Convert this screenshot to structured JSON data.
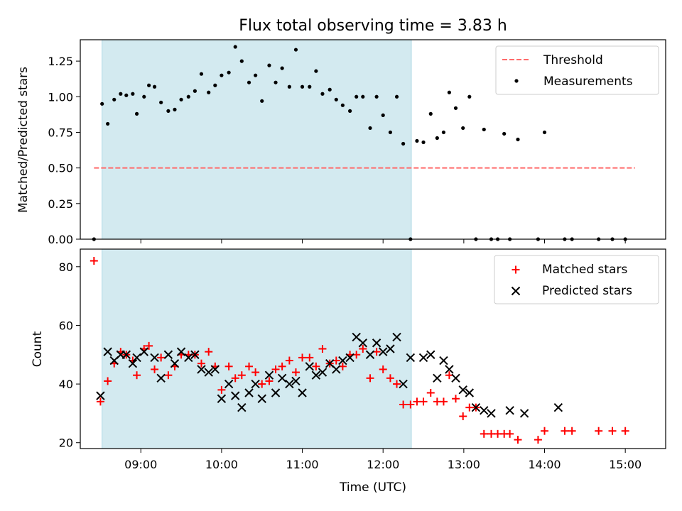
{
  "title": "Flux total observing time = 3.83 h",
  "colors": {
    "threshold": "#ff6b6b",
    "measurements": "#000000",
    "matched": "#ff0000",
    "predicted": "#000000",
    "shade": "#d3eaf0"
  },
  "chart_data": [
    {
      "type": "scatter",
      "panel": "top",
      "title": "Flux total observing time = 3.83 h",
      "xlabel": "",
      "ylabel": "Matched/Predicted stars",
      "xlim": [
        8.25,
        15.5
      ],
      "ylim": [
        0.0,
        1.4
      ],
      "yticks": [
        0.0,
        0.25,
        0.5,
        0.75,
        1.0,
        1.25
      ],
      "ytick_labels": [
        "0.00",
        "0.25",
        "0.50",
        "0.75",
        "1.00",
        "1.25"
      ],
      "shaded_span": [
        8.52,
        12.35
      ],
      "threshold": {
        "name": "Threshold",
        "y": 0.5,
        "x": [
          8.42,
          15.12
        ]
      },
      "legend": {
        "placement": "top-right",
        "entries": [
          "Threshold",
          "Measurements"
        ]
      },
      "series": [
        {
          "name": "Measurements",
          "points": [
            [
              8.42,
              0.0
            ],
            [
              8.52,
              0.95
            ],
            [
              8.59,
              0.81
            ],
            [
              8.67,
              0.98
            ],
            [
              8.75,
              1.02
            ],
            [
              8.82,
              1.01
            ],
            [
              8.9,
              1.02
            ],
            [
              8.95,
              0.88
            ],
            [
              9.04,
              1.0
            ],
            [
              9.1,
              1.08
            ],
            [
              9.17,
              1.07
            ],
            [
              9.25,
              0.96
            ],
            [
              9.34,
              0.9
            ],
            [
              9.42,
              0.91
            ],
            [
              9.5,
              0.98
            ],
            [
              9.59,
              1.0
            ],
            [
              9.67,
              1.04
            ],
            [
              9.75,
              1.16
            ],
            [
              9.84,
              1.03
            ],
            [
              9.92,
              1.08
            ],
            [
              10.0,
              1.15
            ],
            [
              10.09,
              1.17
            ],
            [
              10.17,
              1.35
            ],
            [
              10.25,
              1.25
            ],
            [
              10.34,
              1.1
            ],
            [
              10.42,
              1.15
            ],
            [
              10.5,
              0.97
            ],
            [
              10.59,
              1.22
            ],
            [
              10.67,
              1.1
            ],
            [
              10.75,
              1.2
            ],
            [
              10.84,
              1.07
            ],
            [
              10.92,
              1.33
            ],
            [
              11.0,
              1.07
            ],
            [
              11.09,
              1.07
            ],
            [
              11.17,
              1.18
            ],
            [
              11.25,
              1.02
            ],
            [
              11.34,
              1.05
            ],
            [
              11.42,
              0.98
            ],
            [
              11.5,
              0.94
            ],
            [
              11.59,
              0.9
            ],
            [
              11.67,
              1.0
            ],
            [
              11.75,
              1.0
            ],
            [
              11.84,
              0.78
            ],
            [
              11.92,
              1.0
            ],
            [
              12.0,
              0.87
            ],
            [
              12.09,
              0.75
            ],
            [
              12.17,
              1.0
            ],
            [
              12.25,
              0.67
            ],
            [
              12.34,
              0.0
            ],
            [
              12.42,
              0.69
            ],
            [
              12.5,
              0.68
            ],
            [
              12.59,
              0.88
            ],
            [
              12.67,
              0.71
            ],
            [
              12.75,
              0.75
            ],
            [
              12.82,
              1.03
            ],
            [
              12.9,
              0.92
            ],
            [
              12.99,
              0.78
            ],
            [
              13.07,
              1.0
            ],
            [
              13.15,
              0.0
            ],
            [
              13.25,
              0.77
            ],
            [
              13.34,
              0.0
            ],
            [
              13.42,
              0.0
            ],
            [
              13.5,
              0.74
            ],
            [
              13.57,
              0.0
            ],
            [
              13.67,
              0.7
            ],
            [
              13.92,
              0.0
            ],
            [
              14.0,
              0.75
            ],
            [
              14.25,
              0.0
            ],
            [
              14.34,
              0.0
            ],
            [
              14.67,
              0.0
            ],
            [
              14.84,
              0.0
            ],
            [
              15.0,
              0.0
            ]
          ]
        }
      ]
    },
    {
      "type": "scatter",
      "panel": "bottom",
      "xlabel": "Time (UTC)",
      "ylabel": "Count",
      "xlim": [
        8.25,
        15.5
      ],
      "ylim": [
        18,
        86
      ],
      "yticks": [
        20,
        40,
        60,
        80
      ],
      "ytick_labels": [
        "20",
        "40",
        "60",
        "80"
      ],
      "xticks": [
        9,
        10,
        11,
        12,
        13,
        14,
        15
      ],
      "xtick_labels": [
        "09:00",
        "10:00",
        "11:00",
        "12:00",
        "13:00",
        "14:00",
        "15:00"
      ],
      "shaded_span": [
        8.52,
        12.35
      ],
      "legend": {
        "placement": "top-right",
        "entries": [
          "Matched stars",
          "Predicted stars"
        ]
      },
      "series": [
        {
          "name": "Matched stars",
          "marker": "plus",
          "points": [
            [
              8.42,
              82
            ],
            [
              8.5,
              34
            ],
            [
              8.59,
              41
            ],
            [
              8.67,
              47
            ],
            [
              8.75,
              51
            ],
            [
              8.82,
              50
            ],
            [
              8.9,
              48
            ],
            [
              8.95,
              43
            ],
            [
              9.04,
              52
            ],
            [
              9.1,
              53
            ],
            [
              9.17,
              45
            ],
            [
              9.25,
              49
            ],
            [
              9.34,
              43
            ],
            [
              9.42,
              46
            ],
            [
              9.5,
              50
            ],
            [
              9.59,
              50
            ],
            [
              9.67,
              50
            ],
            [
              9.75,
              47
            ],
            [
              9.84,
              51
            ],
            [
              9.92,
              46
            ],
            [
              10.0,
              38
            ],
            [
              10.09,
              46
            ],
            [
              10.17,
              42
            ],
            [
              10.25,
              43
            ],
            [
              10.34,
              46
            ],
            [
              10.42,
              44
            ],
            [
              10.5,
              40
            ],
            [
              10.59,
              41
            ],
            [
              10.67,
              45
            ],
            [
              10.75,
              46
            ],
            [
              10.84,
              48
            ],
            [
              10.92,
              44
            ],
            [
              11.0,
              49
            ],
            [
              11.09,
              49
            ],
            [
              11.17,
              46
            ],
            [
              11.25,
              52
            ],
            [
              11.34,
              47
            ],
            [
              11.42,
              48
            ],
            [
              11.5,
              46
            ],
            [
              11.59,
              50
            ],
            [
              11.67,
              50
            ],
            [
              11.75,
              52
            ],
            [
              11.84,
              42
            ],
            [
              11.92,
              51
            ],
            [
              12.0,
              45
            ],
            [
              12.09,
              42
            ],
            [
              12.17,
              40
            ],
            [
              12.25,
              33
            ],
            [
              12.34,
              33
            ],
            [
              12.42,
              34
            ],
            [
              12.5,
              34
            ],
            [
              12.59,
              37
            ],
            [
              12.67,
              34
            ],
            [
              12.75,
              34
            ],
            [
              12.82,
              43
            ],
            [
              12.9,
              35
            ],
            [
              12.99,
              29
            ],
            [
              13.07,
              32
            ],
            [
              13.15,
              32
            ],
            [
              13.25,
              23
            ],
            [
              13.34,
              23
            ],
            [
              13.42,
              23
            ],
            [
              13.5,
              23
            ],
            [
              13.57,
              23
            ],
            [
              13.67,
              21
            ],
            [
              13.92,
              21
            ],
            [
              14.0,
              24
            ],
            [
              14.25,
              24
            ],
            [
              14.34,
              24
            ],
            [
              14.67,
              24
            ],
            [
              14.84,
              24
            ],
            [
              15.0,
              24
            ]
          ]
        },
        {
          "name": "Predicted stars",
          "marker": "x",
          "points": [
            [
              8.5,
              36
            ],
            [
              8.59,
              51
            ],
            [
              8.67,
              48
            ],
            [
              8.75,
              50
            ],
            [
              8.82,
              50
            ],
            [
              8.9,
              47
            ],
            [
              8.95,
              49
            ],
            [
              9.04,
              51
            ],
            [
              9.17,
              49
            ],
            [
              9.25,
              42
            ],
            [
              9.34,
              50
            ],
            [
              9.42,
              47
            ],
            [
              9.5,
              51
            ],
            [
              9.59,
              49
            ],
            [
              9.67,
              50
            ],
            [
              9.75,
              45
            ],
            [
              9.84,
              44
            ],
            [
              9.92,
              45
            ],
            [
              10.0,
              35
            ],
            [
              10.09,
              40
            ],
            [
              10.17,
              36
            ],
            [
              10.25,
              32
            ],
            [
              10.34,
              37
            ],
            [
              10.42,
              40
            ],
            [
              10.5,
              35
            ],
            [
              10.59,
              43
            ],
            [
              10.67,
              37
            ],
            [
              10.75,
              42
            ],
            [
              10.84,
              40
            ],
            [
              10.92,
              41
            ],
            [
              11.0,
              37
            ],
            [
              11.09,
              46
            ],
            [
              11.17,
              43
            ],
            [
              11.25,
              44
            ],
            [
              11.34,
              47
            ],
            [
              11.42,
              45
            ],
            [
              11.5,
              48
            ],
            [
              11.59,
              49
            ],
            [
              11.67,
              56
            ],
            [
              11.75,
              54
            ],
            [
              11.84,
              50
            ],
            [
              11.92,
              54
            ],
            [
              12.0,
              51
            ],
            [
              12.09,
              52
            ],
            [
              12.17,
              56
            ],
            [
              12.25,
              40
            ],
            [
              12.34,
              49
            ],
            [
              12.5,
              49
            ],
            [
              12.59,
              50
            ],
            [
              12.67,
              42
            ],
            [
              12.75,
              48
            ],
            [
              12.82,
              45
            ],
            [
              12.9,
              42
            ],
            [
              12.99,
              38
            ],
            [
              13.07,
              37
            ],
            [
              13.15,
              32
            ],
            [
              13.25,
              31
            ],
            [
              13.34,
              30
            ],
            [
              13.57,
              31
            ],
            [
              13.75,
              30
            ],
            [
              14.17,
              32
            ]
          ]
        }
      ]
    }
  ]
}
